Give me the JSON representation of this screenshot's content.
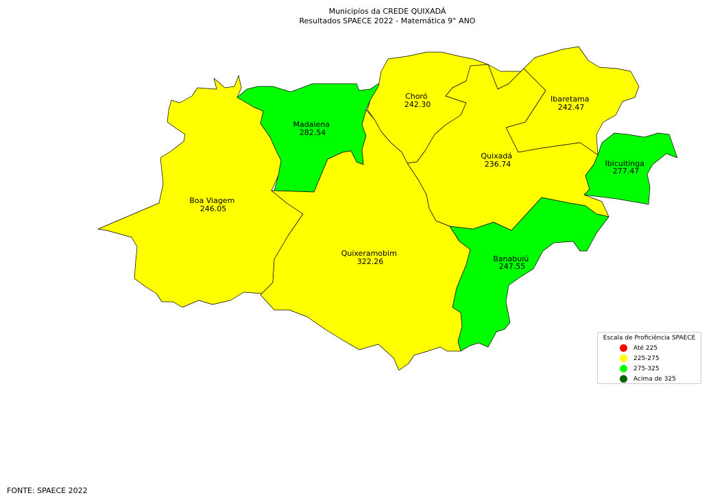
{
  "title": {
    "line1": "Municipíos da CREDE QUIXADÁ",
    "line2": "Resultados SPAECE 2022 - Matemática 9° ANO"
  },
  "municipalities": [
    {
      "name": "Boa Viagem",
      "score": "246.05",
      "color": "#ffff00"
    },
    {
      "name": "Madalena",
      "score": "282.54",
      "color": "#00ff00"
    },
    {
      "name": "Choró",
      "score": "242.30",
      "color": "#ffff00"
    },
    {
      "name": "Ibaretama",
      "score": "242.47",
      "color": "#ffff00"
    },
    {
      "name": "Quixadá",
      "score": "236.74",
      "color": "#ffff00"
    },
    {
      "name": "Ibicuitinga",
      "score": "277.47",
      "color": "#00ff00"
    },
    {
      "name": "Quixeramobim",
      "score": "322.26",
      "color": "#00ff00"
    },
    {
      "name": "Banabuiú",
      "score": "247.55",
      "color": "#ffff00"
    }
  ],
  "legend": {
    "title": "Escala de Proficiência SPAECE",
    "items": [
      {
        "label": "Até 225",
        "color": "#ff0000"
      },
      {
        "label": "225-275",
        "color": "#ffff00"
      },
      {
        "label": "275-325",
        "color": "#00ff00"
      },
      {
        "label": "Acima de 325",
        "color": "#006400"
      }
    ]
  },
  "source": "FONTE: SPAECE 2022"
}
